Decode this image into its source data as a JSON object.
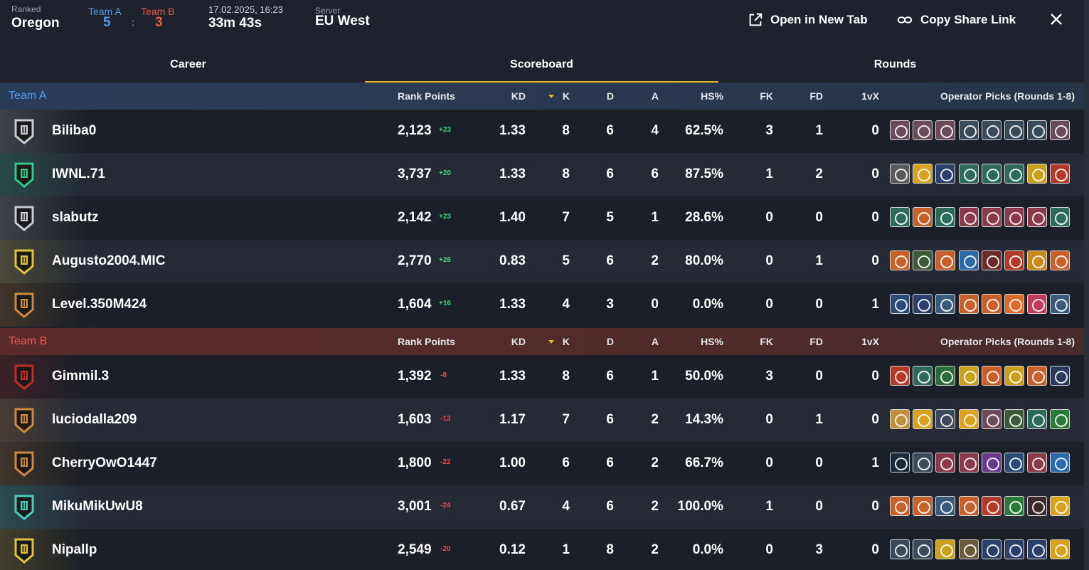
{
  "header": {
    "mode_label": "Ranked",
    "map": "Oregon",
    "team_a_label": "Team A",
    "team_b_label": "Team B",
    "team_a_score": "5",
    "team_b_score": "3",
    "colon": ":",
    "date": "17.02.2025, 16:23",
    "duration": "33m 43s",
    "server_label": "Server",
    "server": "EU West",
    "open_new_tab": "Open in New Tab",
    "copy_link": "Copy Share Link"
  },
  "tabs": [
    {
      "label": "Career",
      "active": false
    },
    {
      "label": "Scoreboard",
      "active": true
    },
    {
      "label": "Rounds",
      "active": false
    }
  ],
  "columns": {
    "rank_points": "Rank Points",
    "kd": "KD",
    "k": "K",
    "d": "D",
    "a": "A",
    "hs": "HS%",
    "fk": "FK",
    "fd": "FD",
    "onevx": "1vX",
    "ops": "Operator Picks (Rounds 1-8)"
  },
  "colors": {
    "team_a": "#4f9cf2",
    "team_b": "#ef5a47",
    "accent": "#e7b52a",
    "gain": "#3fd97a",
    "loss": "#ef4a4a"
  },
  "teams": [
    {
      "name": "Team A",
      "players": [
        {
          "name": "Biliba0",
          "rank_icon": "silver-iv-rank-icon",
          "rank_color": "#c9ccd2",
          "rank_points": "2,123",
          "delta": "+23",
          "kd": "1.33",
          "k": "8",
          "d": "6",
          "a": "4",
          "hs": "62.5%",
          "fk": "3",
          "fd": "1",
          "onevx": "0",
          "ops": [
            "#6b4a5a",
            "#6b4a5a",
            "#6b4a5a",
            "#3a4a5a",
            "#3a4a5a",
            "#3a4a5a",
            "#3a4a5a",
            "#6b4a5a"
          ]
        },
        {
          "name": "IWNL.71",
          "rank_icon": "emerald-iii-rank-icon",
          "rank_color": "#2fc98a",
          "rank_points": "3,737",
          "delta": "+20",
          "kd": "1.33",
          "k": "8",
          "d": "6",
          "a": "6",
          "hs": "87.5%",
          "fk": "1",
          "fd": "2",
          "onevx": "0",
          "ops": [
            "#5a5a5a",
            "#d9a21c",
            "#2a3f6a",
            "#2c6a5a",
            "#2c6a5a",
            "#2c6a5a",
            "#c9a11c",
            "#b33a2a"
          ]
        },
        {
          "name": "slabutz",
          "rank_icon": "silver-iv-rank-icon",
          "rank_color": "#c9ccd2",
          "rank_points": "2,142",
          "delta": "+23",
          "kd": "1.40",
          "k": "7",
          "d": "5",
          "a": "1",
          "hs": "28.6%",
          "fk": "0",
          "fd": "0",
          "onevx": "0",
          "ops": [
            "#2c6a5a",
            "#c8602a",
            "#2c6a5a",
            "#8a3a4a",
            "#8a3a4a",
            "#8a3a4a",
            "#8a3a4a",
            "#2c6a5a"
          ]
        },
        {
          "name": "Augusto2004.MIC",
          "rank_icon": "gold-iii-rank-icon",
          "rank_color": "#e2c33a",
          "rank_points": "2,770",
          "delta": "+26",
          "kd": "0.83",
          "k": "5",
          "d": "6",
          "a": "2",
          "hs": "80.0%",
          "fk": "0",
          "fd": "1",
          "onevx": "0",
          "ops": [
            "#c8602a",
            "#3a5a3a",
            "#c8602a",
            "#2a6aaa",
            "#6a2a2a",
            "#b33a2a",
            "#c98a1c",
            "#c8602a"
          ]
        },
        {
          "name": "Level.350M424",
          "rank_icon": "bronze-iv-rank-icon",
          "rank_color": "#d08a3a",
          "rank_points": "1,604",
          "delta": "+16",
          "kd": "1.33",
          "k": "4",
          "d": "3",
          "a": "0",
          "hs": "0.0%",
          "fk": "0",
          "fd": "0",
          "onevx": "1",
          "ops": [
            "#2a4a7a",
            "#2a3f6a",
            "#3a5a7a",
            "#c8602a",
            "#c8602a",
            "#e06a2a",
            "#c23a5a",
            "#3a5a7a"
          ]
        }
      ]
    },
    {
      "name": "Team B",
      "players": [
        {
          "name": "Gimmil.3",
          "rank_icon": "copper-ii-rank-icon",
          "rank_color": "#c42a2a",
          "rank_points": "1,392",
          "delta": "-8",
          "kd": "1.33",
          "k": "8",
          "d": "6",
          "a": "1",
          "hs": "50.0%",
          "fk": "3",
          "fd": "0",
          "onevx": "0",
          "ops": [
            "#b33a2a",
            "#2c6a5a",
            "#2c6a3a",
            "#c9a11c",
            "#c8602a",
            "#c9a11c",
            "#c8602a",
            "#2a3a5a"
          ]
        },
        {
          "name": "luciodalla209",
          "rank_icon": "bronze-iv-rank-icon",
          "rank_color": "#d08a3a",
          "rank_points": "1,603",
          "delta": "-13",
          "kd": "1.17",
          "k": "7",
          "d": "6",
          "a": "2",
          "hs": "14.3%",
          "fk": "0",
          "fd": "1",
          "onevx": "0",
          "ops": [
            "#c2903a",
            "#d9a21c",
            "#3a4a5a",
            "#e0a21c",
            "#6b4a5a",
            "#3a5a3a",
            "#2c6a5a",
            "#2a7a3a"
          ]
        },
        {
          "name": "CherryOwO1447",
          "rank_icon": "bronze-ii-rank-icon",
          "rank_color": "#d08a3a",
          "rank_points": "1,800",
          "delta": "-22",
          "kd": "1.00",
          "k": "6",
          "d": "6",
          "a": "2",
          "hs": "66.7%",
          "fk": "0",
          "fd": "0",
          "onevx": "1",
          "ops": [
            "#1a2a3a",
            "#3a4a5a",
            "#8a3a4a",
            "#8a3a4a",
            "#6a3a8a",
            "#2a4a7a",
            "#8a3a4a",
            "#2a6aaa"
          ]
        },
        {
          "name": "MikuMikUwU8",
          "rank_icon": "emerald-v-rank-icon",
          "rank_color": "#4ad0c0",
          "rank_points": "3,001",
          "delta": "-24",
          "kd": "0.67",
          "k": "4",
          "d": "6",
          "a": "2",
          "hs": "100.0%",
          "fk": "1",
          "fd": "0",
          "onevx": "0",
          "ops": [
            "#c8602a",
            "#c8602a",
            "#3a5a7a",
            "#c8602a",
            "#b33a2a",
            "#2a7a3a",
            "#3a2a2a",
            "#d9a21c"
          ]
        },
        {
          "name": "Nipallp",
          "rank_icon": "gold-v-rank-icon",
          "rank_color": "#e2c33a",
          "rank_points": "2,549",
          "delta": "-20",
          "kd": "0.12",
          "k": "1",
          "d": "8",
          "a": "2",
          "hs": "0.0%",
          "fk": "0",
          "fd": "3",
          "onevx": "0",
          "ops": [
            "#3a4a5a",
            "#3a4a5a",
            "#c9a11c",
            "#6a5a3a",
            "#2a3f6a",
            "#2a3f6a",
            "#2a3f6a",
            "#d9a21c"
          ]
        }
      ]
    }
  ]
}
